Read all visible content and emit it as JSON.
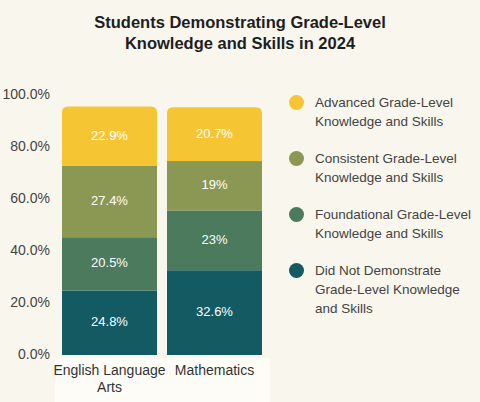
{
  "chart_data": {
    "type": "bar",
    "title": "Students Demonstrating Grade-Level Knowledge and Skills in 2024",
    "categories": [
      "English Language Arts",
      "Mathematics"
    ],
    "series": [
      {
        "name": "Did Not Demonstrate Grade-Level Knowledge and Skills",
        "color": "#135a63",
        "values": [
          24.8,
          32.6
        ],
        "value_labels": [
          "24.8%",
          "32.6%"
        ]
      },
      {
        "name": "Foundational Grade-Level Knowledge and Skills",
        "color": "#4b7a5c",
        "values": [
          20.5,
          23
        ],
        "value_labels": [
          "20.5%",
          "23%"
        ]
      },
      {
        "name": "Consistent Grade-Level Knowledge and Skills",
        "color": "#8b9853",
        "values": [
          27.4,
          19
        ],
        "value_labels": [
          "27.4%",
          "19%"
        ]
      },
      {
        "name": "Advanced Grade-Level Knowledge and Skills",
        "color": "#f6c534",
        "values": [
          22.9,
          20.7
        ],
        "value_labels": [
          "22.9%",
          "20.7%"
        ]
      }
    ],
    "ylim": [
      0,
      100
    ],
    "yticks": [
      {
        "value": 0,
        "label": "0.0%"
      },
      {
        "value": 20,
        "label": "20.0%"
      },
      {
        "value": 40,
        "label": "40.0%"
      },
      {
        "value": 60,
        "label": "60.0%"
      },
      {
        "value": 80,
        "label": "80.0%"
      },
      {
        "value": 100,
        "label": "100.0%"
      }
    ],
    "stacked": true,
    "data_labels": true,
    "grid": false,
    "legend": "right"
  }
}
